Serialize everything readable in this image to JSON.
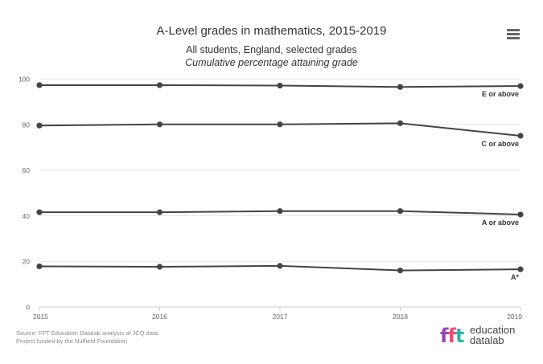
{
  "header": {
    "menu_icon": "hamburger-menu-icon"
  },
  "chart_data": {
    "type": "line",
    "title": "A-Level grades in mathematics, 2015-2019",
    "subtitle_line1": "All students, England, selected grades",
    "subtitle_line2": "Cumulative percentage attaining grade",
    "xlabel": "",
    "ylabel": "",
    "x": [
      "2015",
      "2016",
      "2017",
      "2018",
      "2019"
    ],
    "ylim": [
      0,
      100
    ],
    "yticks": [
      "0",
      "20",
      "40",
      "60",
      "80",
      "100"
    ],
    "grid": true,
    "line_color": "#444444",
    "series": [
      {
        "name": "E or above",
        "values": [
          97.2,
          97.2,
          97.0,
          96.4,
          96.8
        ]
      },
      {
        "name": "C or above",
        "values": [
          79.5,
          80.0,
          80.0,
          80.5,
          75.0
        ]
      },
      {
        "name": "A or above",
        "values": [
          41.5,
          41.5,
          42.0,
          42.0,
          40.5
        ]
      },
      {
        "name": "A*",
        "values": [
          17.8,
          17.6,
          18.0,
          16.0,
          16.5
        ]
      }
    ]
  },
  "footer": {
    "source_line1": "Source: FFT Education Datalab analysis of JCQ data",
    "source_line2": "Project funded by the Nuffield Foundation",
    "logo_mark": "fft",
    "logo_word1": "education",
    "logo_word2": "datalab",
    "logo_colors": [
      "#9b3fb5",
      "#e94e77",
      "#2bb3a6"
    ]
  }
}
